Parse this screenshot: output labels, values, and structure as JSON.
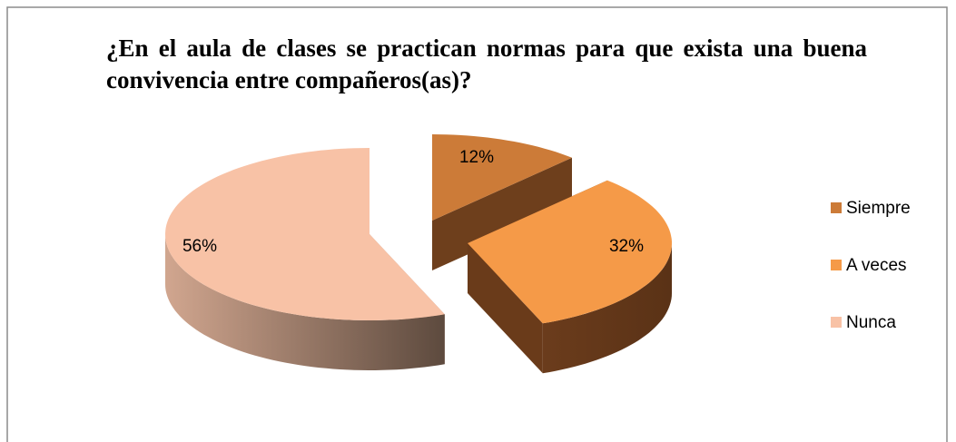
{
  "chart_data": {
    "type": "pie",
    "title": "¿En el aula de clases se practican normas para que exista una buena convivencia entre compañeros(as)?",
    "categories": [
      "Siempre",
      "A veces",
      "Nunca"
    ],
    "values": [
      12,
      32,
      56
    ],
    "value_labels": [
      "12%",
      "32%",
      "56%"
    ],
    "colors": [
      "#cc7b38",
      "#f59a48",
      "#f8c2a6"
    ],
    "legend": "right"
  }
}
